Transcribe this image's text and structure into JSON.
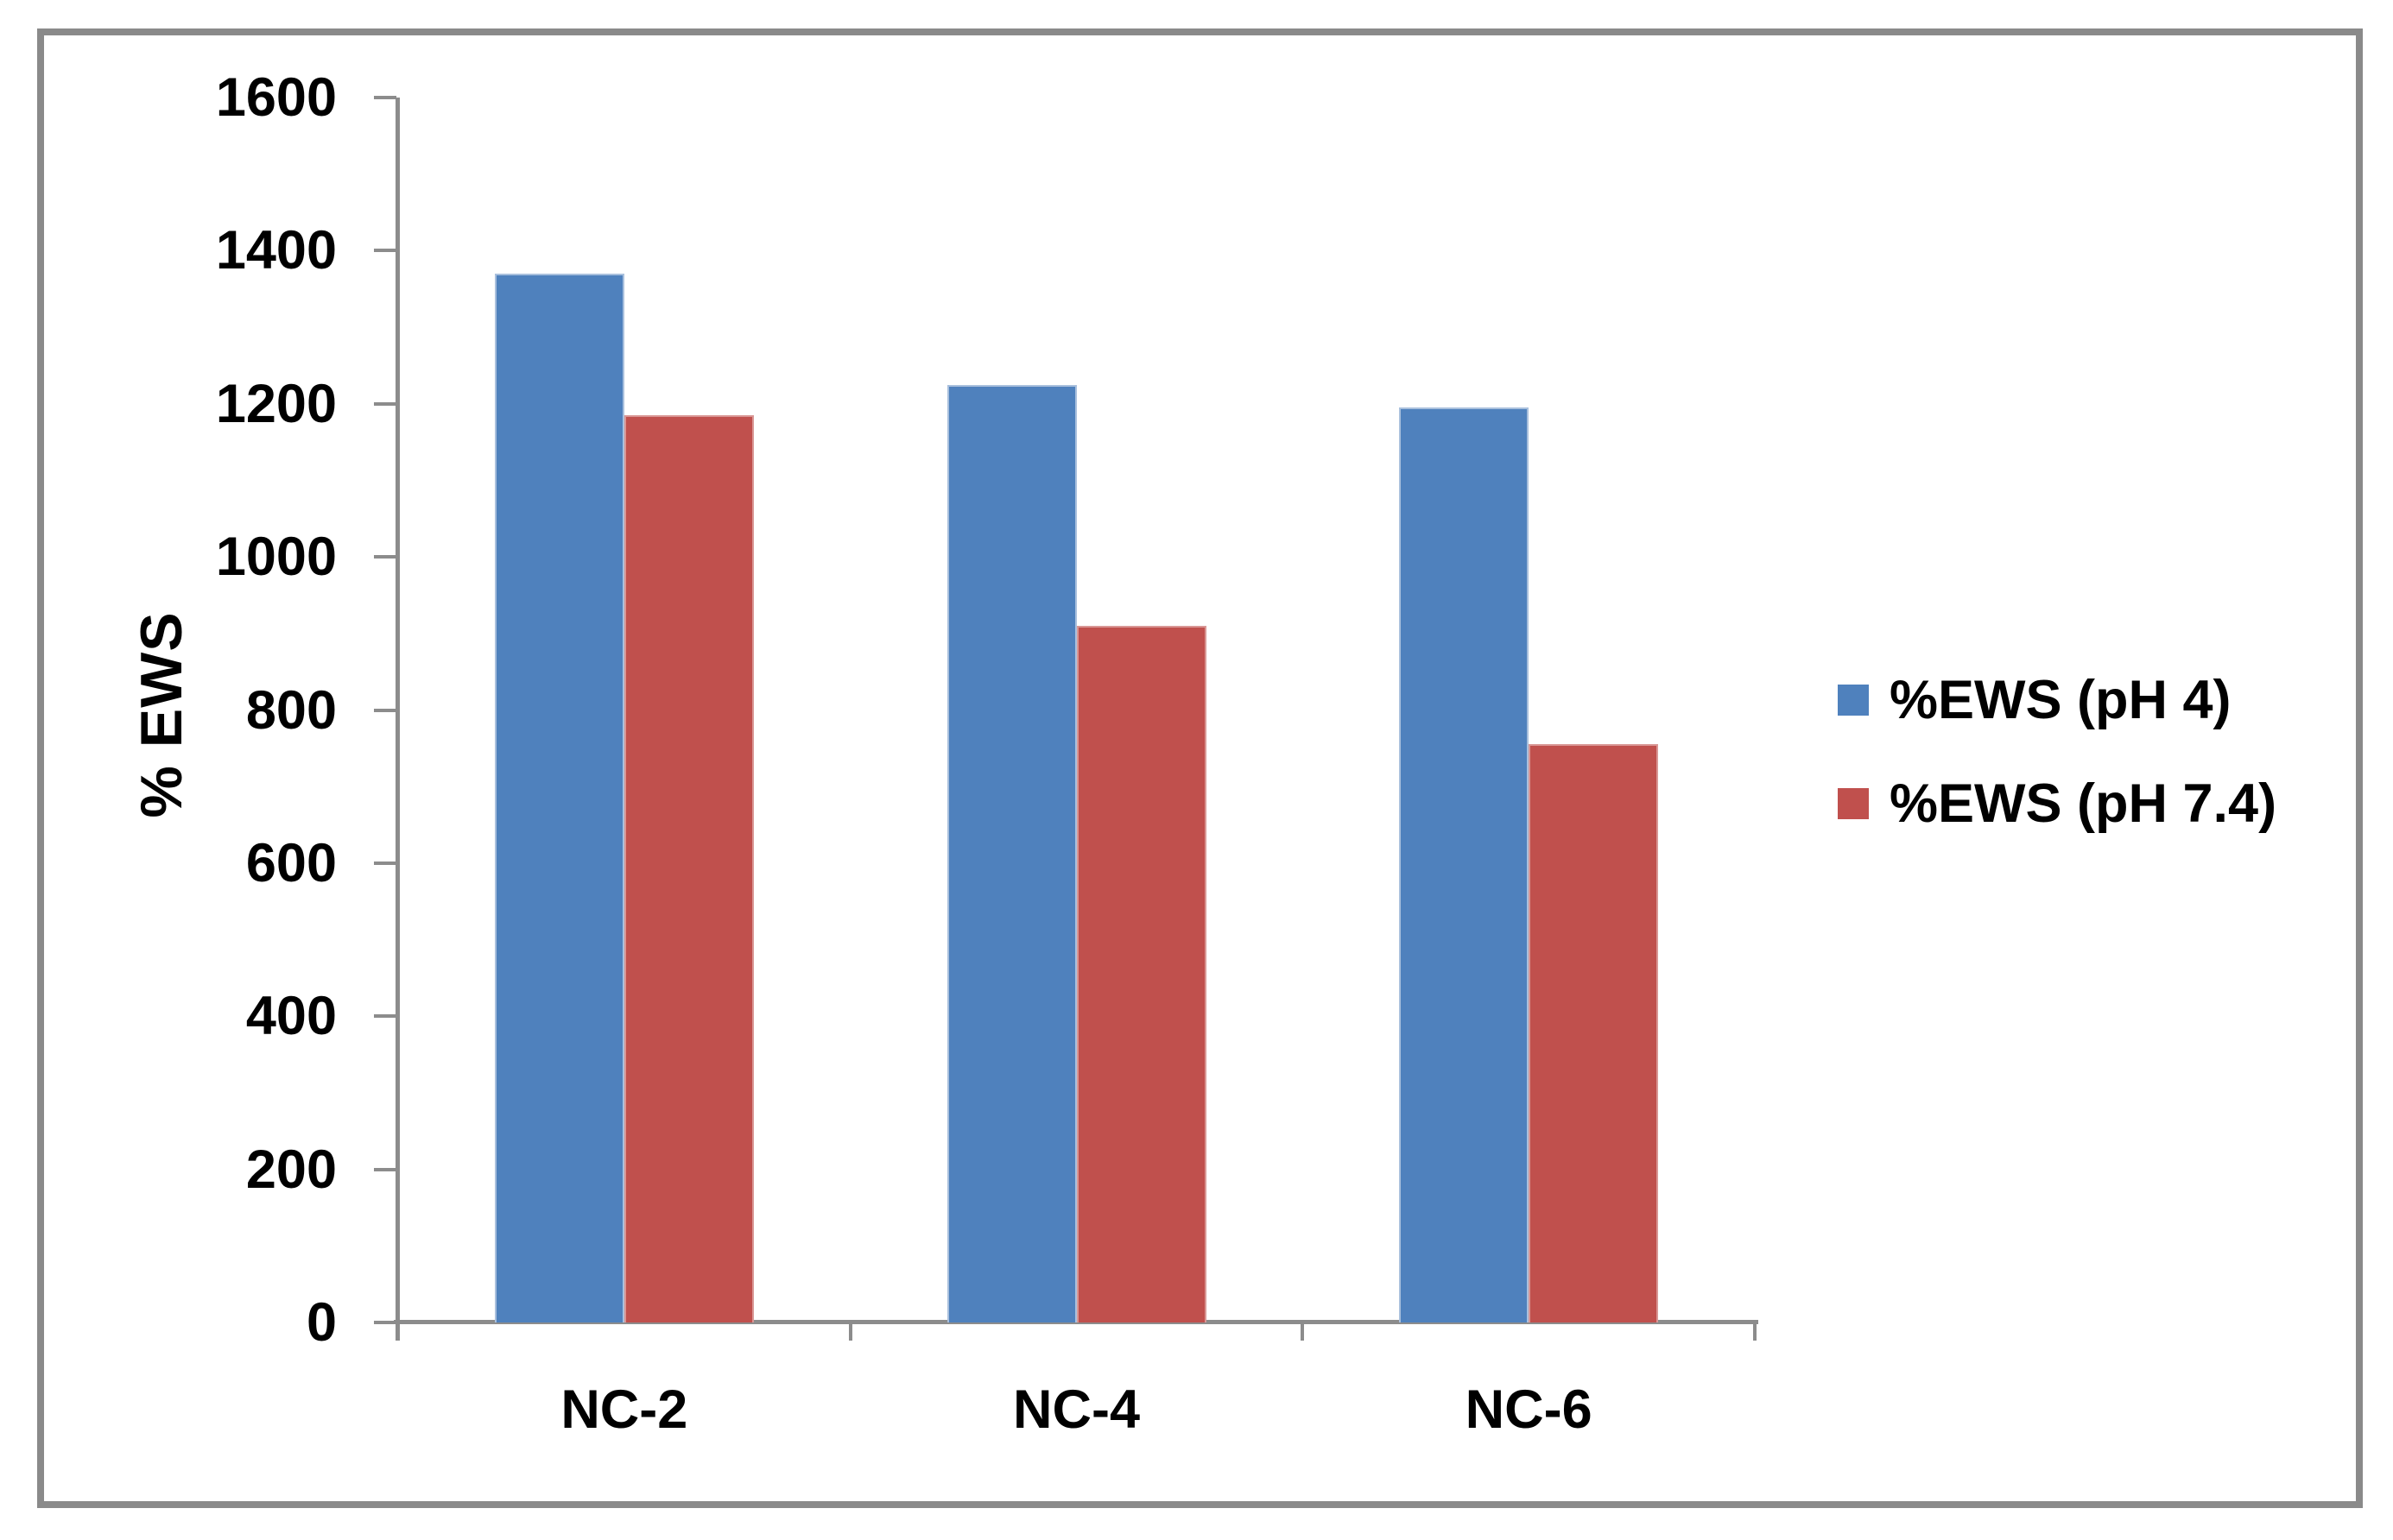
{
  "chart_data": {
    "type": "bar",
    "title": "",
    "xlabel": "",
    "ylabel": "% EWS",
    "categories": [
      "NC-2",
      "NC-4",
      "NC-6"
    ],
    "series": [
      {
        "name": "%EWS (pH 4)",
        "color": "#4F81BD",
        "border_color": "#A9C0DD",
        "values": [
          1370,
          1225,
          1195
        ]
      },
      {
        "name": "%EWS (pH 7.4)",
        "color": "#C0504D",
        "border_color": "#D99795",
        "values": [
          1185,
          910,
          755
        ]
      }
    ],
    "ylim": [
      0,
      1600
    ],
    "y_ticks": [
      0,
      200,
      400,
      600,
      800,
      1000,
      1200,
      1400,
      1600
    ],
    "grid": false,
    "legend_position": "right"
  },
  "colors": {
    "axis": "#8C8C8C",
    "frame": "#8A8A8A",
    "text": "#000000",
    "background": "#FFFFFF"
  }
}
